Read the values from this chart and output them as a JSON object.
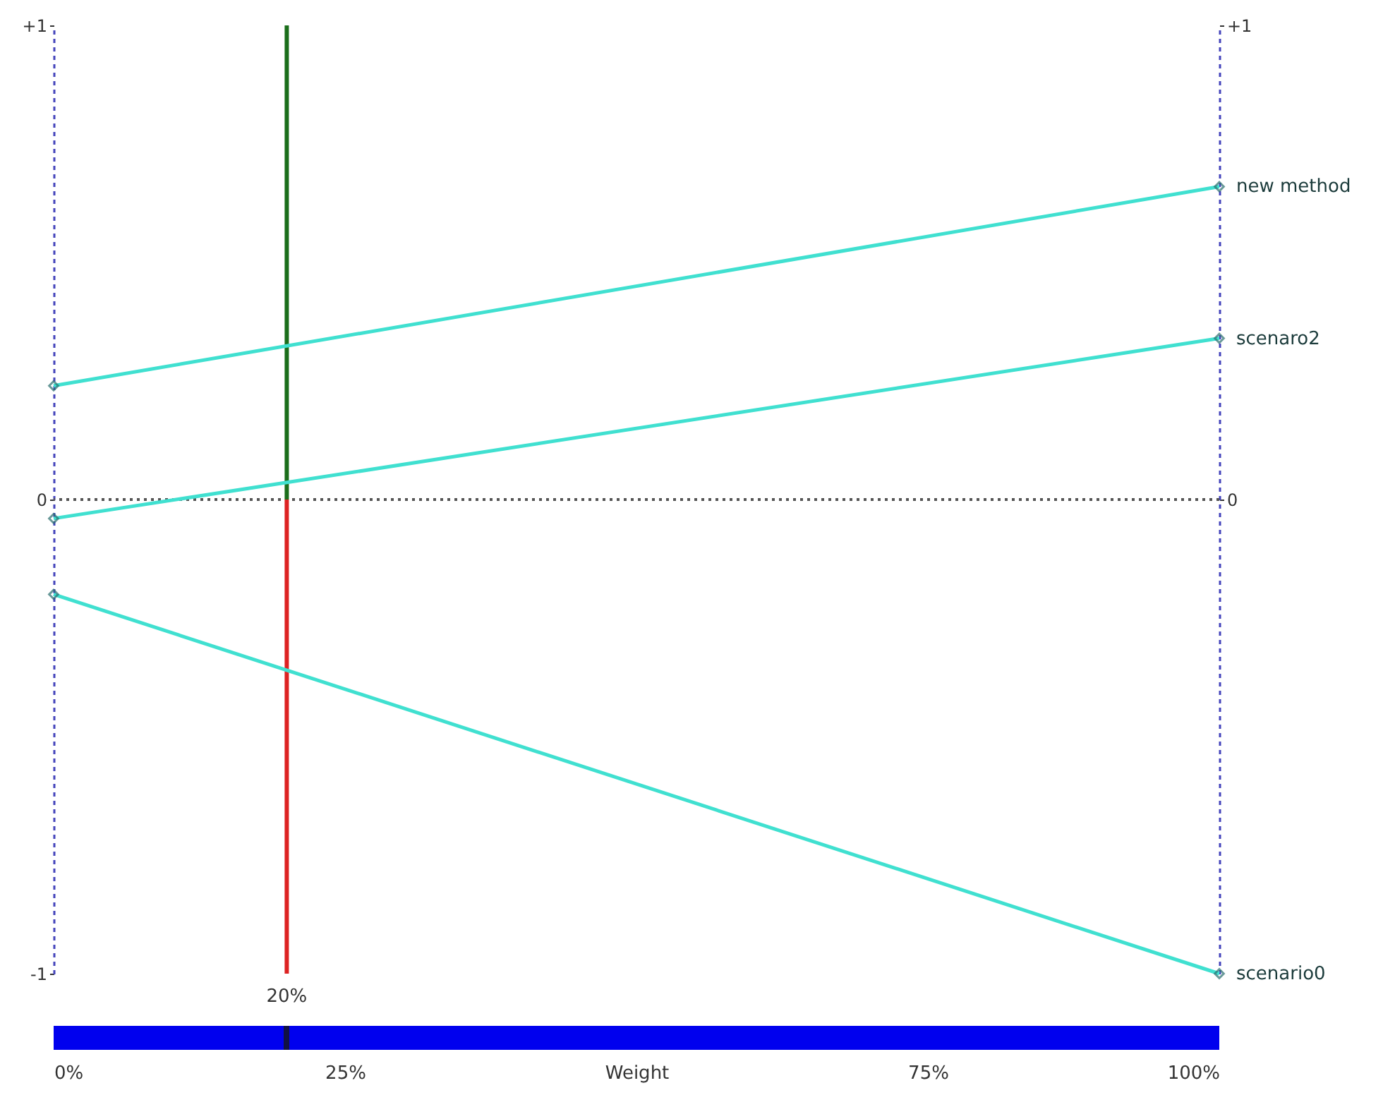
{
  "chart_data": {
    "type": "line",
    "xlabel": "Weight",
    "x": [
      0,
      100
    ],
    "series": [
      {
        "name": "new method",
        "color": "#40e0d0",
        "values": [
          0.24,
          0.66
        ]
      },
      {
        "name": "scenaro2",
        "color": "#40e0d0",
        "values": [
          -0.04,
          0.34
        ]
      },
      {
        "name": "scenario0",
        "color": "#40e0d0",
        "values": [
          -0.2,
          -1.0
        ]
      }
    ],
    "xlim": [
      0,
      100
    ],
    "xticks": [
      {
        "value": 0,
        "label": "0%"
      },
      {
        "value": 25,
        "label": "25%"
      },
      {
        "value": 75,
        "label": "75%"
      },
      {
        "value": 100,
        "label": "100%"
      }
    ],
    "ylim": [
      -1,
      1
    ],
    "yticks": [
      {
        "value": -1,
        "label": "-1"
      },
      0,
      {
        "value": 1,
        "label": "+1"
      }
    ],
    "y2lim": [
      -1,
      1
    ],
    "y2ticks": [
      0,
      {
        "value": 1,
        "label": "+1"
      }
    ],
    "ref_lines": [
      {
        "axis": "y",
        "value": 0,
        "color": "#555555",
        "line_style": "dotted"
      },
      {
        "axis": "x",
        "value": 20,
        "label": "20%",
        "color": "#1b6e1b"
      }
    ],
    "marker": "diamond",
    "grid": false
  }
}
